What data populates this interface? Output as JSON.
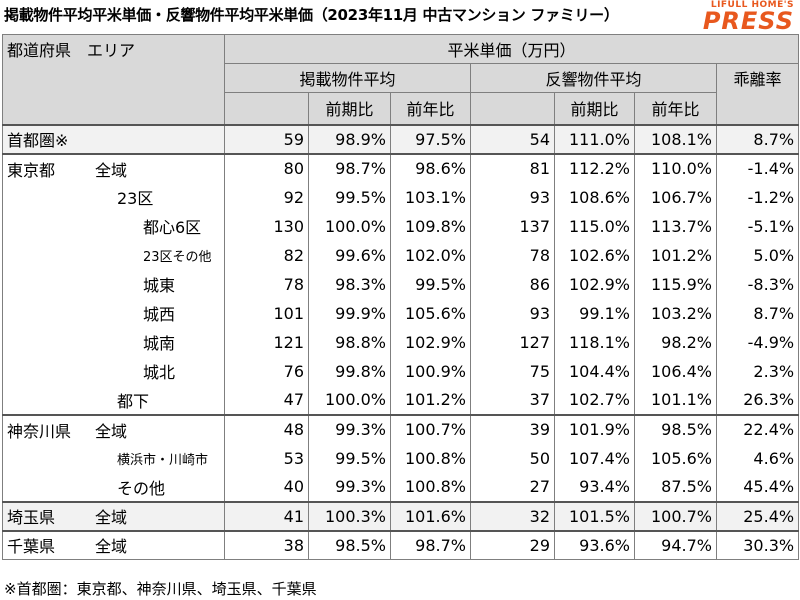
{
  "title": "掲載物件平均平米単価・反響物件平均平米単価（2023年11月 中古マンション ファミリー）",
  "logo": {
    "top": "LIFULL HOME'S",
    "main": "PRESS"
  },
  "header": {
    "region": "都道府県　エリア",
    "price_group": "平米単価（万円）",
    "listing_avg": "掲載物件平均",
    "response_avg": "反響物件平均",
    "divergence": "乖離率",
    "prev_period": "前期比",
    "prev_year": "前年比"
  },
  "rows": [
    {
      "pref": "首都圏※",
      "area": "",
      "lv": 0,
      "a": "59",
      "b": "98.9%",
      "c": "97.5%",
      "d": "54",
      "e": "111.0%",
      "f": "108.1%",
      "g": "8.7%"
    },
    {
      "pref": "東京都",
      "area": "全域",
      "lv": 0,
      "a": "80",
      "b": "98.7%",
      "c": "98.6%",
      "d": "81",
      "e": "112.2%",
      "f": "110.0%",
      "g": "-1.4%"
    },
    {
      "pref": "",
      "area": "23区",
      "lv": 1,
      "a": "92",
      "b": "99.5%",
      "c": "103.1%",
      "d": "93",
      "e": "108.6%",
      "f": "106.7%",
      "g": "-1.2%"
    },
    {
      "pref": "",
      "area": "都心6区",
      "lv": 2,
      "a": "130",
      "b": "100.0%",
      "c": "109.8%",
      "d": "137",
      "e": "115.0%",
      "f": "113.7%",
      "g": "-5.1%"
    },
    {
      "pref": "",
      "area": "23区その他",
      "lv": 2,
      "small": true,
      "a": "82",
      "b": "99.6%",
      "c": "102.0%",
      "d": "78",
      "e": "102.6%",
      "f": "101.2%",
      "g": "5.0%"
    },
    {
      "pref": "",
      "area": "城東",
      "lv": 2,
      "a": "78",
      "b": "98.3%",
      "c": "99.5%",
      "d": "86",
      "e": "102.9%",
      "f": "115.9%",
      "g": "-8.3%"
    },
    {
      "pref": "",
      "area": "城西",
      "lv": 2,
      "a": "101",
      "b": "99.9%",
      "c": "105.6%",
      "d": "93",
      "e": "99.1%",
      "f": "103.2%",
      "g": "8.7%"
    },
    {
      "pref": "",
      "area": "城南",
      "lv": 2,
      "a": "121",
      "b": "98.8%",
      "c": "102.9%",
      "d": "127",
      "e": "118.1%",
      "f": "98.2%",
      "g": "-4.9%"
    },
    {
      "pref": "",
      "area": "城北",
      "lv": 2,
      "a": "76",
      "b": "99.8%",
      "c": "100.9%",
      "d": "75",
      "e": "104.4%",
      "f": "106.4%",
      "g": "2.3%"
    },
    {
      "pref": "",
      "area": "都下",
      "lv": 1,
      "a": "47",
      "b": "100.0%",
      "c": "101.2%",
      "d": "37",
      "e": "102.7%",
      "f": "101.1%",
      "g": "26.3%"
    },
    {
      "pref": "神奈川県",
      "area": "全域",
      "lv": 0,
      "a": "48",
      "b": "99.3%",
      "c": "100.7%",
      "d": "39",
      "e": "101.9%",
      "f": "98.5%",
      "g": "22.4%"
    },
    {
      "pref": "",
      "area": "横浜市・川崎市",
      "lv": 1,
      "small": true,
      "a": "53",
      "b": "99.5%",
      "c": "100.8%",
      "d": "50",
      "e": "107.4%",
      "f": "105.6%",
      "g": "4.6%"
    },
    {
      "pref": "",
      "area": "その他",
      "lv": 1,
      "a": "40",
      "b": "99.3%",
      "c": "100.8%",
      "d": "27",
      "e": "93.4%",
      "f": "87.5%",
      "g": "45.4%"
    },
    {
      "pref": "埼玉県",
      "area": "全域",
      "lv": 0,
      "a": "41",
      "b": "100.3%",
      "c": "101.6%",
      "d": "32",
      "e": "101.5%",
      "f": "100.7%",
      "g": "25.4%"
    },
    {
      "pref": "千葉県",
      "area": "全域",
      "lv": 0,
      "a": "38",
      "b": "98.5%",
      "c": "98.7%",
      "d": "29",
      "e": "93.6%",
      "f": "94.7%",
      "g": "30.3%"
    }
  ],
  "group_starts": [
    0,
    1,
    10,
    13,
    14
  ],
  "shaded_rows": [
    0,
    13
  ],
  "footnote": "※首都圏：東京都、神奈川県、埼玉県、千葉県"
}
